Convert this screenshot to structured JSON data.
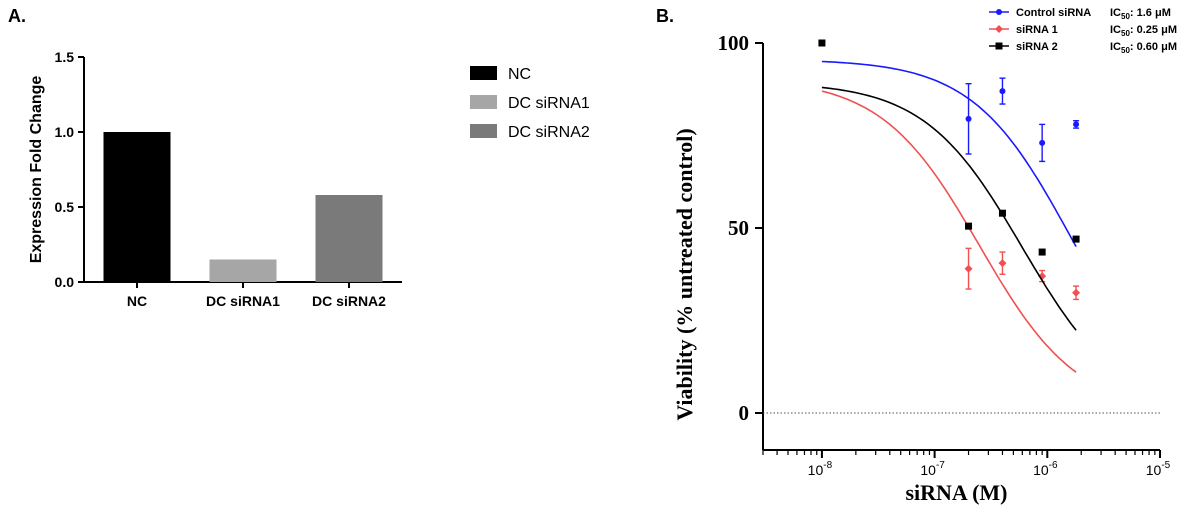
{
  "panel_a_label": "A.",
  "panel_b_label": "B.",
  "ic50_prefix": "IC",
  "ic50_sub": "50",
  "chart_data": [
    {
      "type": "bar",
      "categories": [
        "NC",
        "DC siRNA1",
        "DC siRNA2"
      ],
      "values": [
        1.0,
        0.15,
        0.58
      ],
      "colors": [
        "#000000",
        "#a6a6a6",
        "#7a7a7a"
      ],
      "title": "",
      "xlabel": "",
      "ylabel": "Expression Fold Change",
      "ylim": [
        0,
        1.5
      ],
      "yticks": [
        0.0,
        0.5,
        1.0,
        1.5
      ],
      "ytick_labels": [
        "0.0",
        "0.5",
        "1.0",
        "1.5"
      ],
      "legend": {
        "position": "right",
        "entries": [
          "NC",
          "DC siRNA1",
          "DC siRNA2"
        ]
      },
      "grid": false
    },
    {
      "type": "scatter",
      "title": "",
      "xlabel": "siRNA (M)",
      "ylabel": "Viability (% untreated control)",
      "xscale": "log",
      "xlim": [
        3e-09,
        1e-05
      ],
      "ylim": [
        -10,
        100
      ],
      "yticks": [
        0,
        50,
        100
      ],
      "ytick_labels": [
        "0",
        "50",
        "100"
      ],
      "xticks": [
        1e-08,
        1e-07,
        1e-06,
        1e-05
      ],
      "xtick_base": "10",
      "xtick_exponents": [
        "-8",
        "-7",
        "-6",
        "-5"
      ],
      "reference_line_y": 0,
      "legend": {
        "position": "top-right"
      },
      "grid": false,
      "series": [
        {
          "name": "Control siRNA",
          "ic50_value": ": 1.6 μM",
          "color": "#1a1aff",
          "marker": "circle",
          "x": [
            2e-07,
            4e-07,
            9e-07,
            1.8e-06
          ],
          "y": [
            79.5,
            87.0,
            73.0,
            78.0
          ],
          "err": [
            9.5,
            3.5,
            5.0,
            1.0
          ],
          "fit_x": [
            1e-08,
            1.8e-06
          ],
          "fit_ic50": 1.6e-06,
          "fit_y_start": 95
        },
        {
          "name": "siRNA 1",
          "ic50_value": ": 0.25 μM",
          "color": "#f05050",
          "marker": "diamond",
          "x": [
            2e-07,
            4e-07,
            9e-07,
            1.8e-06
          ],
          "y": [
            39.0,
            40.5,
            37.0,
            32.5
          ],
          "err": [
            5.5,
            3.0,
            1.5,
            1.8
          ],
          "fit_x": [
            1e-08,
            1.8e-06
          ],
          "fit_ic50": 2.5e-07,
          "fit_y_start": 87
        },
        {
          "name": "siRNA 2",
          "ic50_value": ": 0.60 μM",
          "color": "#000000",
          "marker": "square",
          "x": [
            1e-08,
            2e-07,
            4e-07,
            9e-07,
            1.8e-06
          ],
          "y": [
            100.0,
            50.5,
            54.0,
            43.5,
            47.0
          ],
          "err": [
            0,
            0,
            0,
            0,
            0
          ],
          "fit_x": [
            1e-08,
            1.8e-06
          ],
          "fit_ic50": 6e-07,
          "fit_y_start": 88
        }
      ]
    }
  ]
}
